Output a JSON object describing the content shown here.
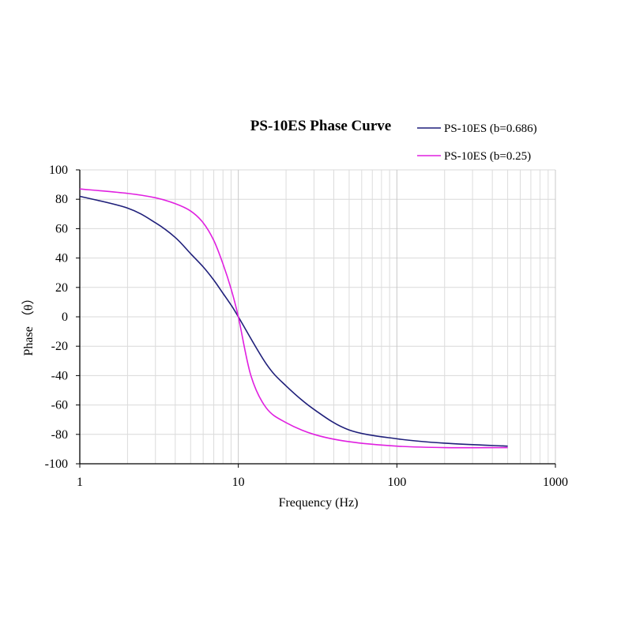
{
  "chart_data": {
    "type": "line",
    "title": "PS-10ES Phase Curve",
    "xlabel": "Frequency (Hz)",
    "ylabel": "Phase （θ）",
    "x_scale": "log",
    "xlim": [
      1,
      1000
    ],
    "ylim": [
      -100,
      100
    ],
    "x_ticks": [
      1,
      10,
      100,
      1000
    ],
    "x_tick_labels": [
      "1",
      "10",
      "100",
      "1000"
    ],
    "y_ticks": [
      100,
      80,
      60,
      40,
      20,
      0,
      -20,
      -40,
      -60,
      -80,
      -100
    ],
    "y_tick_labels": [
      "100",
      "80",
      "60",
      "40",
      "20",
      "0",
      "-20",
      "-40",
      "-60",
      "-80",
      "-100"
    ],
    "grid": true,
    "legend_position": "top-right",
    "series": [
      {
        "name": "PS-10ES (b=0.686)",
        "color": "#1f1f7a",
        "x": [
          1,
          2,
          3,
          4,
          5,
          6,
          7,
          8,
          9,
          10,
          15,
          20,
          30,
          50,
          100,
          200,
          500
        ],
        "y": [
          82,
          74,
          64,
          54,
          43,
          34,
          25,
          16,
          8,
          0,
          -32,
          -47,
          -63,
          -77,
          -83,
          -86,
          -88
        ]
      },
      {
        "name": "PS-10ES (b=0.25)",
        "color": "#e020e0",
        "x": [
          1,
          2,
          3,
          4,
          5,
          6,
          7,
          8,
          9,
          10,
          12,
          15,
          20,
          30,
          50,
          100,
          200,
          500
        ],
        "y": [
          87,
          84,
          81,
          77,
          72,
          64,
          52,
          36,
          19,
          0,
          -40,
          -62,
          -72,
          -80,
          -85,
          -88,
          -89,
          -89
        ]
      }
    ]
  }
}
